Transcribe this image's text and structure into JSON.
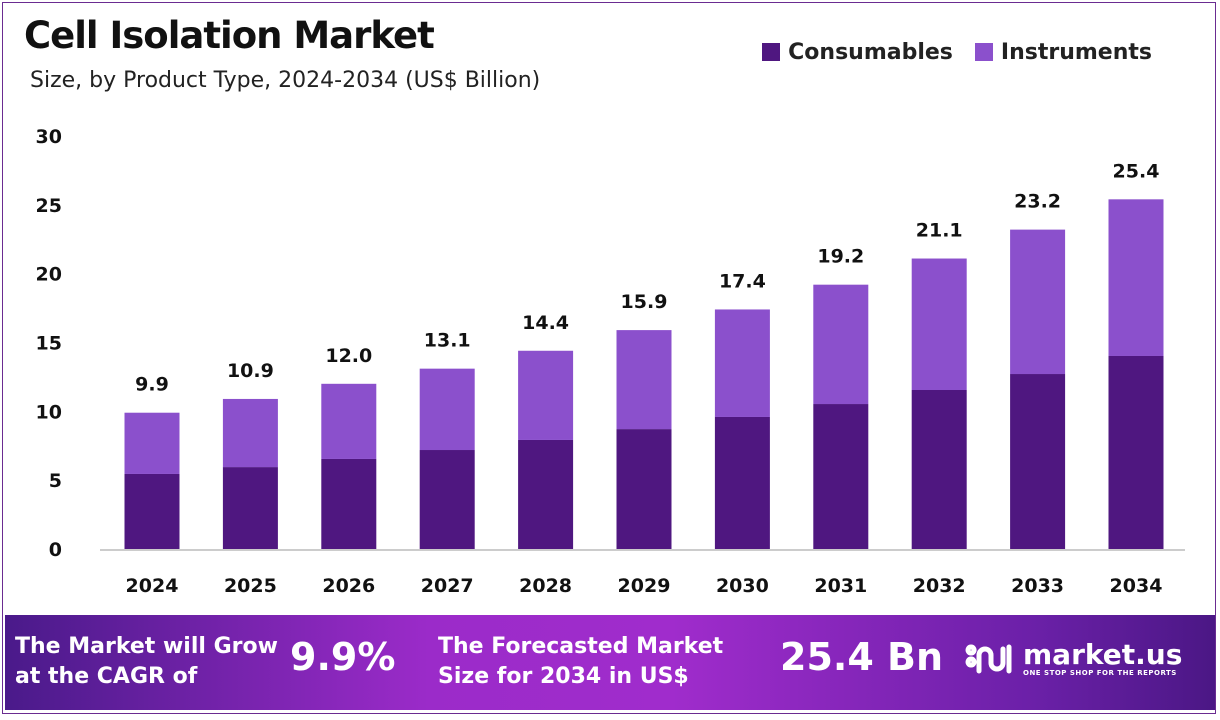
{
  "chart_data": {
    "type": "bar",
    "stacked": true,
    "title": "Cell Isolation Market",
    "subtitle": "Size, by Product Type, 2024-2034 (US$ Billion)",
    "categories": [
      "2024",
      "2025",
      "2026",
      "2027",
      "2028",
      "2029",
      "2030",
      "2031",
      "2032",
      "2033",
      "2034"
    ],
    "series": [
      {
        "name": "Consumables",
        "color": "#4f1780",
        "values": [
          5.45,
          5.95,
          6.54,
          7.19,
          7.92,
          8.71,
          9.59,
          10.53,
          11.55,
          12.71,
          14.02
        ]
      },
      {
        "name": "Instruments",
        "color": "#8b50cc",
        "values": [
          4.45,
          4.95,
          5.46,
          5.91,
          6.48,
          7.19,
          7.81,
          8.67,
          9.55,
          10.49,
          11.38
        ]
      }
    ],
    "totals": [
      "9.9",
      "10.9",
      "12.0",
      "13.1",
      "14.4",
      "15.9",
      "17.4",
      "19.2",
      "21.1",
      "23.2",
      "25.4"
    ],
    "ylim": [
      0,
      30
    ],
    "yticks": [
      0,
      5,
      10,
      15,
      20,
      25,
      30
    ],
    "legend_position": "top-right",
    "grid": false
  },
  "banner": {
    "cagr_text_1": "The Market will Grow",
    "cagr_text_2": "at the CAGR of",
    "cagr_value": "9.9%",
    "forecast_text_1": "The Forecasted Market",
    "forecast_text_2": "Size for 2034 in US$",
    "forecast_value": "25.4 Bn",
    "logo_name": "market.us",
    "logo_tagline": "ONE STOP SHOP FOR THE REPORTS"
  }
}
